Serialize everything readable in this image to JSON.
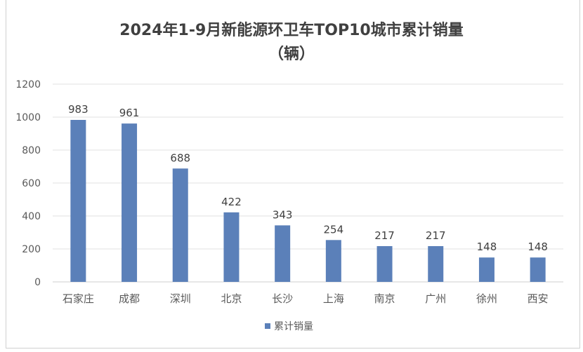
{
  "chart_data": {
    "type": "bar",
    "title": "2024年1-9月新能源环卫车TOP10城市累计销量",
    "subtitle": "（辆）",
    "categories": [
      "石家庄",
      "成都",
      "深圳",
      "北京",
      "长沙",
      "上海",
      "南京",
      "广州",
      "徐州",
      "西安"
    ],
    "series": [
      {
        "name": "累计销量",
        "values": [
          983,
          961,
          688,
          422,
          343,
          254,
          217,
          217,
          148,
          148
        ],
        "color": "#5b80b9"
      }
    ],
    "ylim": [
      0,
      1200
    ],
    "yticks": [
      0,
      200,
      400,
      600,
      800,
      1000,
      1200
    ],
    "grid": true,
    "legend": "bottom",
    "data_labels": true
  }
}
